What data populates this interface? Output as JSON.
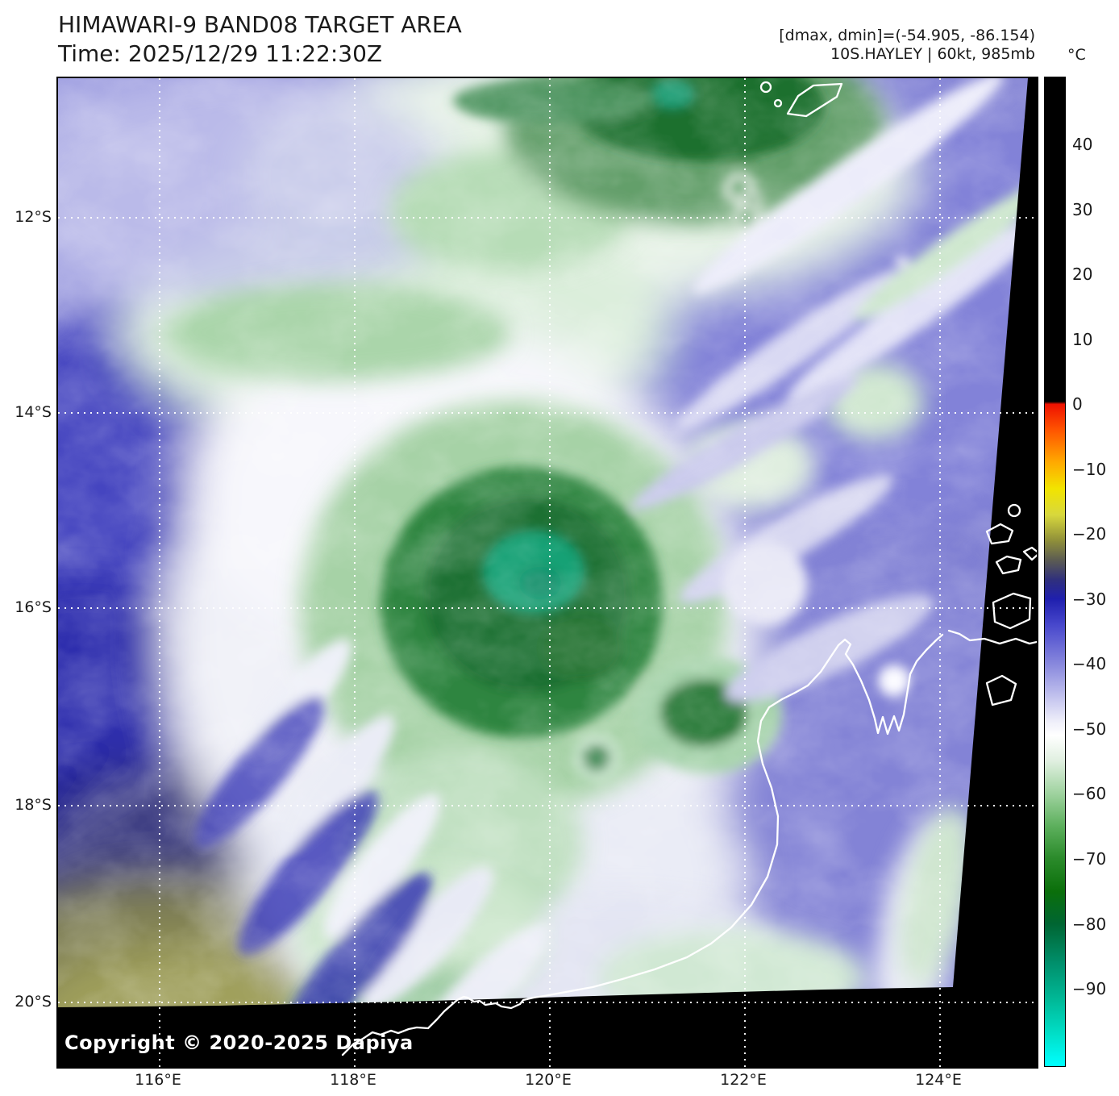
{
  "header": {
    "title": "HIMAWARI-9 BAND08 TARGET AREA",
    "time": "Time: 2025/12/29 11:22:30Z"
  },
  "annotations": {
    "range_line": "[dmax, dmin]=(-54.905, -86.154)",
    "storm_line": "10S.HAYLEY | 60kt, 985mb"
  },
  "colorbar": {
    "unit": "°C",
    "scale_max": 50.3,
    "scale_min": -101.9,
    "ticks": [
      {
        "label": "40",
        "value": 40
      },
      {
        "label": "30",
        "value": 30
      },
      {
        "label": "20",
        "value": 20
      },
      {
        "label": "10",
        "value": 10
      },
      {
        "label": "0",
        "value": 0
      },
      {
        "label": "−10",
        "value": -10
      },
      {
        "label": "−20",
        "value": -20
      },
      {
        "label": "−30",
        "value": -30
      },
      {
        "label": "−40",
        "value": -40
      },
      {
        "label": "−50",
        "value": -50
      },
      {
        "label": "−60",
        "value": -60
      },
      {
        "label": "−70",
        "value": -70
      },
      {
        "label": "−80",
        "value": -80
      },
      {
        "label": "−90",
        "value": -90
      }
    ],
    "stops": [
      {
        "value": 50.3,
        "color": "#000000"
      },
      {
        "value": 0.4,
        "color": "#000000"
      },
      {
        "value": 0.0,
        "color": "#ee1100"
      },
      {
        "value": -4,
        "color": "#ff5500"
      },
      {
        "value": -9,
        "color": "#ffaa00"
      },
      {
        "value": -13,
        "color": "#f2e400"
      },
      {
        "value": -17,
        "color": "#d8d83c"
      },
      {
        "value": -21,
        "color": "#8f8f3a"
      },
      {
        "value": -24,
        "color": "#5c5c52"
      },
      {
        "value": -27,
        "color": "#30307c"
      },
      {
        "value": -30,
        "color": "#1f1fae"
      },
      {
        "value": -34,
        "color": "#4848cc"
      },
      {
        "value": -40,
        "color": "#8888dd"
      },
      {
        "value": -45,
        "color": "#c2c2ee"
      },
      {
        "value": -49,
        "color": "#f0f0fa"
      },
      {
        "value": -51,
        "color": "#ffffff"
      },
      {
        "value": -55,
        "color": "#dfefdf"
      },
      {
        "value": -60,
        "color": "#9ed29e"
      },
      {
        "value": -65,
        "color": "#5caf5c"
      },
      {
        "value": -70,
        "color": "#2a8a2a"
      },
      {
        "value": -75,
        "color": "#0b6f0b"
      },
      {
        "value": -80,
        "color": "#006532"
      },
      {
        "value": -86,
        "color": "#008f6b"
      },
      {
        "value": -92,
        "color": "#00bb9a"
      },
      {
        "value": -97,
        "color": "#00dfc8"
      },
      {
        "value": -101.9,
        "color": "#00ffff"
      }
    ]
  },
  "map": {
    "lat_ticks": [
      {
        "label": "12°S"
      },
      {
        "label": "14°S"
      },
      {
        "label": "16°S"
      },
      {
        "label": "18°S"
      },
      {
        "label": "20°S"
      }
    ],
    "lon_ticks": [
      {
        "label": "116°E"
      },
      {
        "label": "118°E"
      },
      {
        "label": "120°E"
      },
      {
        "label": "122°E"
      },
      {
        "label": "124°E"
      }
    ],
    "copyright": "Copyright © 2020-2025 Dapiya",
    "palette": {
      "cloud_base_periwinkle": "#8d8dda",
      "warm_deep_blue": "#2e2eae",
      "warm_land_olive": "#a0a05c",
      "cold_core_green": "#1f7030",
      "coldest_teal": "#12a175",
      "cloud_white": "#f2f2f8",
      "offscan_black": "#000000",
      "coastline": "#ffffff",
      "gridline": "#ffffff"
    }
  }
}
